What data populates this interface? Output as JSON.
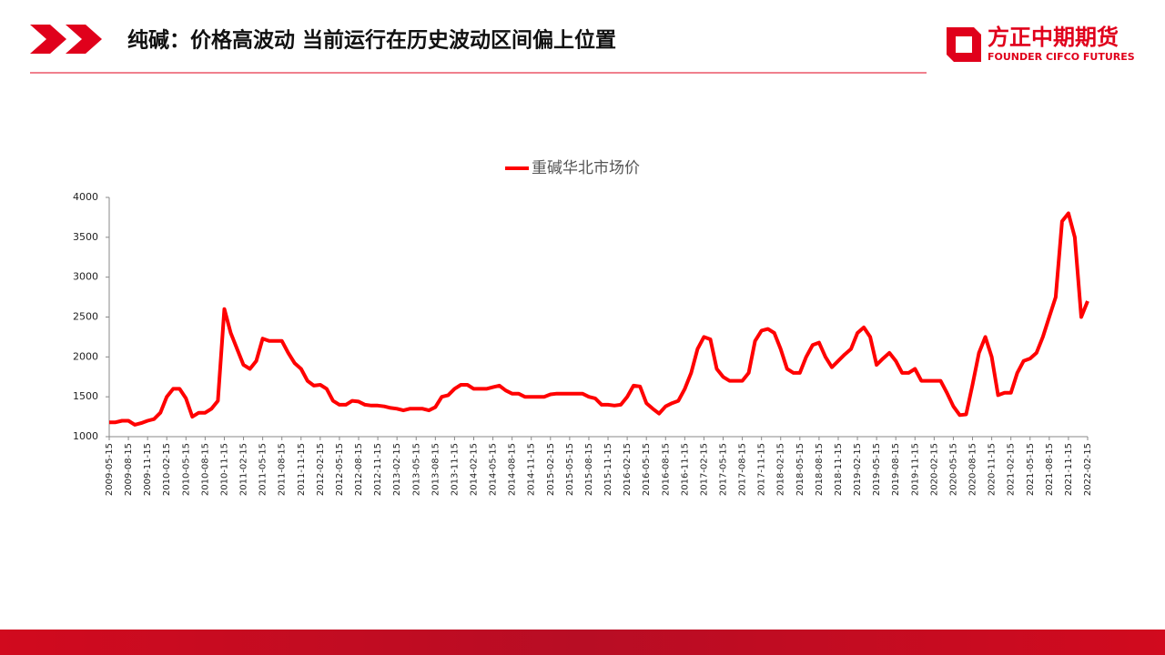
{
  "header": {
    "title": "纯碱：价格高波动 当前运行在历史波动区间偏上位置",
    "logo_cn": "方正中期期货",
    "logo_en": "FOUNDER CIFCO FUTURES"
  },
  "chart_data": {
    "type": "line",
    "x": [
      "2009-05-15",
      "2009-06-15",
      "2009-07-15",
      "2009-08-15",
      "2009-09-15",
      "2009-10-15",
      "2009-11-15",
      "2009-12-15",
      "2010-01-15",
      "2010-02-15",
      "2010-03-15",
      "2010-04-15",
      "2010-05-15",
      "2010-06-15",
      "2010-07-15",
      "2010-08-15",
      "2010-09-15",
      "2010-10-15",
      "2010-11-15",
      "2010-12-15",
      "2011-01-15",
      "2011-02-15",
      "2011-03-15",
      "2011-04-15",
      "2011-05-15",
      "2011-06-15",
      "2011-07-15",
      "2011-08-15",
      "2011-09-15",
      "2011-10-15",
      "2011-11-15",
      "2011-12-15",
      "2012-01-15",
      "2012-02-15",
      "2012-03-15",
      "2012-04-15",
      "2012-05-15",
      "2012-06-15",
      "2012-07-15",
      "2012-08-15",
      "2012-09-15",
      "2012-10-15",
      "2012-11-15",
      "2012-12-15",
      "2013-01-15",
      "2013-02-15",
      "2013-03-15",
      "2013-04-15",
      "2013-05-15",
      "2013-06-15",
      "2013-07-15",
      "2013-08-15",
      "2013-09-15",
      "2013-10-15",
      "2013-11-15",
      "2013-12-15",
      "2014-01-15",
      "2014-02-15",
      "2014-03-15",
      "2014-04-15",
      "2014-05-15",
      "2014-06-15",
      "2014-07-15",
      "2014-08-15",
      "2014-09-15",
      "2014-10-15",
      "2014-11-15",
      "2014-12-15",
      "2015-01-15",
      "2015-02-15",
      "2015-03-15",
      "2015-04-15",
      "2015-05-15",
      "2015-06-15",
      "2015-07-15",
      "2015-08-15",
      "2015-09-15",
      "2015-10-15",
      "2015-11-15",
      "2015-12-15",
      "2016-01-15",
      "2016-02-15",
      "2016-03-15",
      "2016-04-15",
      "2016-05-15",
      "2016-06-15",
      "2016-07-15",
      "2016-08-15",
      "2016-09-15",
      "2016-10-15",
      "2016-11-15",
      "2016-12-15",
      "2017-01-15",
      "2017-02-15",
      "2017-03-15",
      "2017-04-15",
      "2017-05-15",
      "2017-06-15",
      "2017-07-15",
      "2017-08-15",
      "2017-09-15",
      "2017-10-15",
      "2017-11-15",
      "2017-12-15",
      "2018-01-15",
      "2018-02-15",
      "2018-03-15",
      "2018-04-15",
      "2018-05-15",
      "2018-06-15",
      "2018-07-15",
      "2018-08-15",
      "2018-09-15",
      "2018-10-15",
      "2018-11-15",
      "2018-12-15",
      "2019-01-15",
      "2019-02-15",
      "2019-03-15",
      "2019-04-15",
      "2019-05-15",
      "2019-06-15",
      "2019-07-15",
      "2019-08-15",
      "2019-09-15",
      "2019-10-15",
      "2019-11-15",
      "2019-12-15",
      "2020-01-15",
      "2020-02-15",
      "2020-03-15",
      "2020-04-15",
      "2020-05-15",
      "2020-06-15",
      "2020-07-15",
      "2020-08-15",
      "2020-09-15",
      "2020-10-15",
      "2020-11-15",
      "2020-12-15",
      "2021-01-15",
      "2021-02-15",
      "2021-03-15",
      "2021-04-15",
      "2021-05-15",
      "2021-06-15",
      "2021-07-15",
      "2021-08-15",
      "2021-09-15",
      "2021-10-15",
      "2021-11-15",
      "2021-12-15",
      "2022-01-15",
      "2022-02-15"
    ],
    "series": [
      {
        "name": "重碱华北市场价",
        "color": "#ff0000",
        "values": [
          1180,
          1180,
          1200,
          1200,
          1150,
          1170,
          1200,
          1220,
          1300,
          1500,
          1600,
          1600,
          1480,
          1250,
          1300,
          1300,
          1350,
          1450,
          2600,
          2300,
          2100,
          1900,
          1850,
          1950,
          2230,
          2200,
          2200,
          2200,
          2050,
          1920,
          1850,
          1700,
          1640,
          1650,
          1600,
          1450,
          1400,
          1400,
          1450,
          1440,
          1400,
          1390,
          1390,
          1380,
          1360,
          1350,
          1330,
          1350,
          1350,
          1350,
          1330,
          1370,
          1500,
          1520,
          1600,
          1650,
          1650,
          1600,
          1600,
          1600,
          1620,
          1640,
          1580,
          1540,
          1540,
          1500,
          1500,
          1500,
          1500,
          1530,
          1540,
          1540,
          1540,
          1540,
          1540,
          1500,
          1480,
          1400,
          1400,
          1390,
          1400,
          1500,
          1640,
          1630,
          1420,
          1350,
          1290,
          1380,
          1420,
          1450,
          1600,
          1800,
          2100,
          2250,
          2220,
          1850,
          1750,
          1700,
          1700,
          1700,
          1800,
          2200,
          2330,
          2350,
          2300,
          2100,
          1850,
          1800,
          1800,
          2000,
          2150,
          2180,
          2000,
          1870,
          1950,
          2030,
          2100,
          2300,
          2370,
          2250,
          1900,
          1980,
          2050,
          1950,
          1800,
          1800,
          1850,
          1700,
          1700,
          1700,
          1700,
          1550,
          1380,
          1270,
          1280,
          1650,
          2050,
          2250,
          2000,
          1520,
          1550,
          1550,
          1800,
          1950,
          1980,
          2050,
          2250,
          2500,
          2750,
          3700,
          3800,
          3500,
          2500,
          2700
        ]
      }
    ],
    "xlim": [
      "2009-05-15",
      "2022-02-15"
    ],
    "xticks": [
      "2009-05-15",
      "2009-08-15",
      "2009-11-15",
      "2010-02-15",
      "2010-05-15",
      "2010-08-15",
      "2010-11-15",
      "2011-02-15",
      "2011-05-15",
      "2011-08-15",
      "2011-11-15",
      "2012-02-15",
      "2012-05-15",
      "2012-08-15",
      "2012-11-15",
      "2013-02-15",
      "2013-05-15",
      "2013-08-15",
      "2013-11-15",
      "2014-02-15",
      "2014-05-15",
      "2014-08-15",
      "2014-11-15",
      "2015-02-15",
      "2015-05-15",
      "2015-08-15",
      "2015-11-15",
      "2016-02-15",
      "2016-05-15",
      "2016-08-15",
      "2016-11-15",
      "2017-02-15",
      "2017-05-15",
      "2017-08-15",
      "2017-11-15",
      "2018-02-15",
      "2018-05-15",
      "2018-08-15",
      "2018-11-15",
      "2019-02-15",
      "2019-05-15",
      "2019-08-15",
      "2019-11-15",
      "2020-02-15",
      "2020-05-15",
      "2020-08-15",
      "2020-11-15",
      "2021-02-15",
      "2021-05-15",
      "2021-08-15",
      "2021-11-15",
      "2022-02-15"
    ],
    "ylim": [
      1000,
      4000
    ],
    "yticks": [
      1000,
      1500,
      2000,
      2500,
      3000,
      3500,
      4000
    ],
    "legend": "top",
    "grid": false
  }
}
